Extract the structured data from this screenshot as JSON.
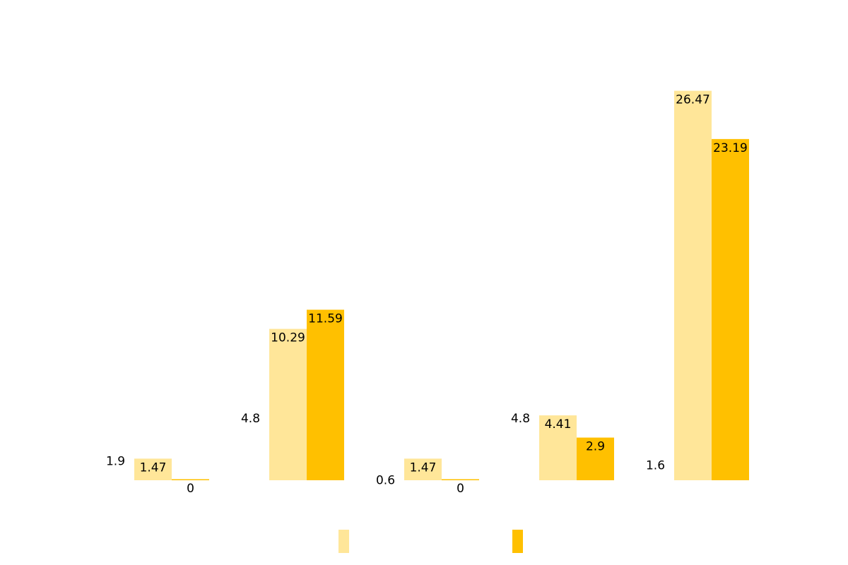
{
  "chart_data": {
    "type": "bar",
    "categories": [
      null,
      null,
      null,
      null,
      null
    ],
    "series": [
      {
        "color": "#FFFFFF",
        "values": [
          1.9,
          4.8,
          0.6,
          4.8,
          1.6
        ]
      },
      {
        "color": "#FFE699",
        "values": [
          1.47,
          10.29,
          1.47,
          4.41,
          26.47
        ]
      },
      {
        "color": "#FFC000",
        "values": [
          0,
          11.59,
          0,
          2.9,
          23.19
        ]
      }
    ],
    "ylim": [
      0,
      30
    ],
    "grid": false
  }
}
